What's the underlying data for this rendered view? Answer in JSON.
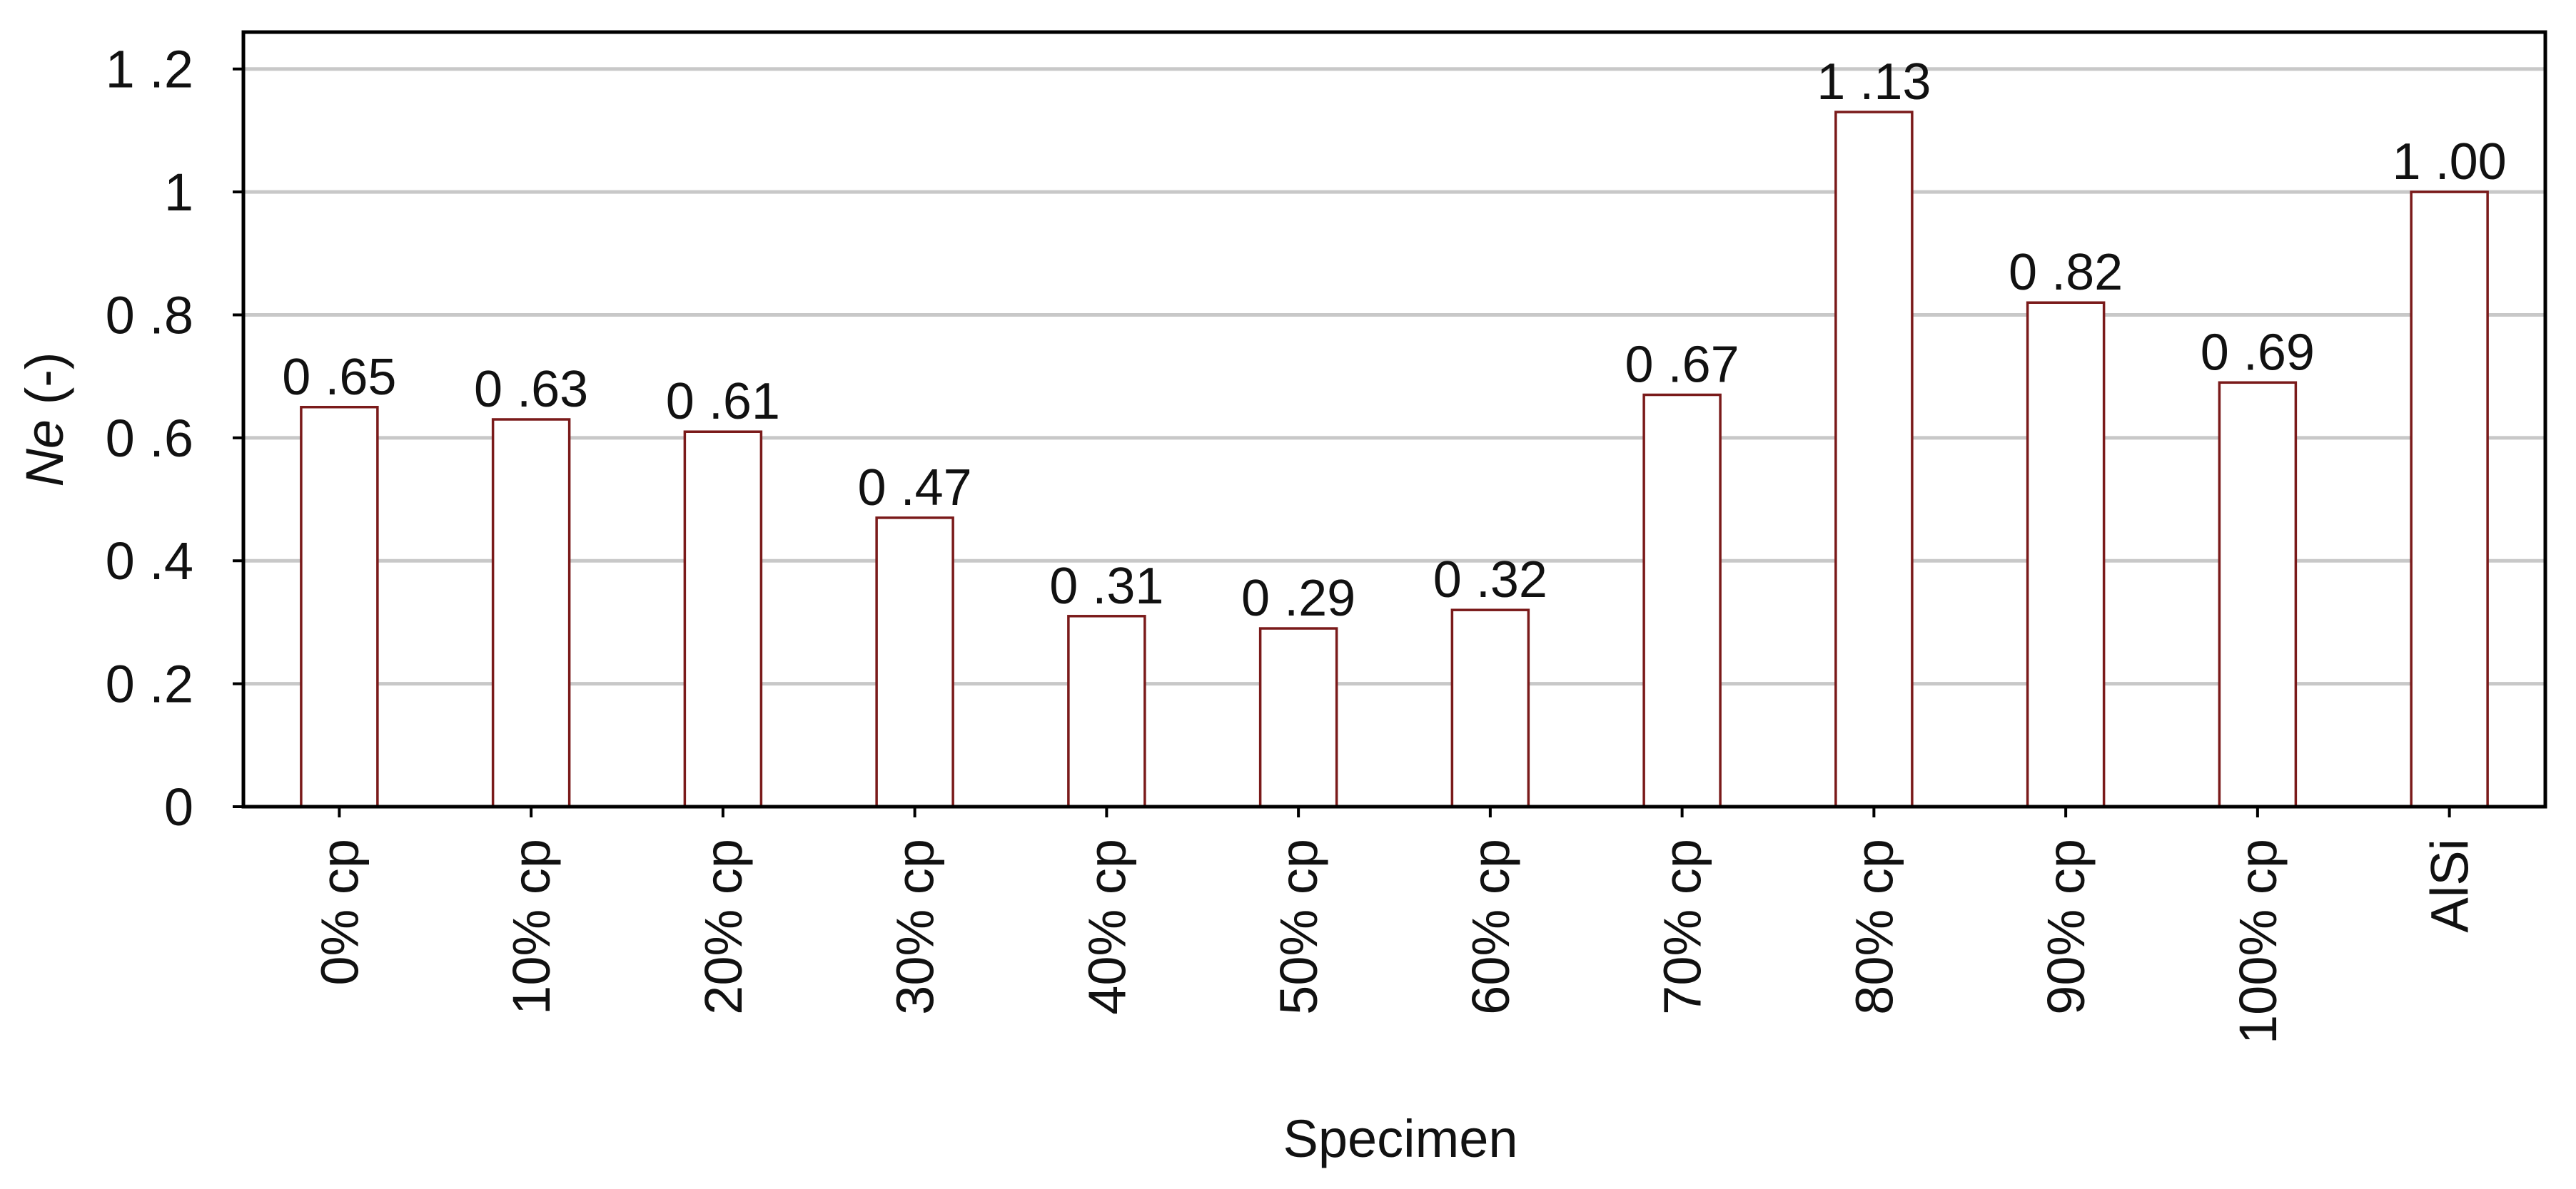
{
  "chart_data": {
    "type": "bar",
    "categories": [
      "0% cp",
      "10% cp",
      "20% cp",
      "30% cp",
      "40% cp",
      "50% cp",
      "60% cp",
      "70% cp",
      "80% cp",
      "90% cp",
      "100% cp",
      "AlSi"
    ],
    "values": [
      0.65,
      0.63,
      0.61,
      0.47,
      0.31,
      0.29,
      0.32,
      0.67,
      1.13,
      0.82,
      0.69,
      1.0
    ],
    "data_labels": [
      "0 .65",
      "0 .63",
      "0 .61",
      "0 .47",
      "0 .31",
      "0 .29",
      "0 .32",
      "0 .67",
      "1 .13",
      "0 .82",
      "0 .69",
      "1 .00"
    ],
    "xlabel": "Specimen",
    "ylabel_italic": "Ne",
    "ylabel_unit": " (-)",
    "ylim": [
      0,
      1.26
    ],
    "yticks": [
      0,
      0.2,
      0.4,
      0.6,
      0.8,
      1,
      1.2
    ],
    "ytick_labels": [
      "0",
      "0 .2",
      "0 .4",
      "0 .6",
      "0 .8",
      "1",
      "1 .2"
    ],
    "grid": true,
    "colors": {
      "bar_fill": "#ffffff",
      "bar_edge": "#7a1a1a",
      "grid": "#c8c8c8"
    }
  }
}
